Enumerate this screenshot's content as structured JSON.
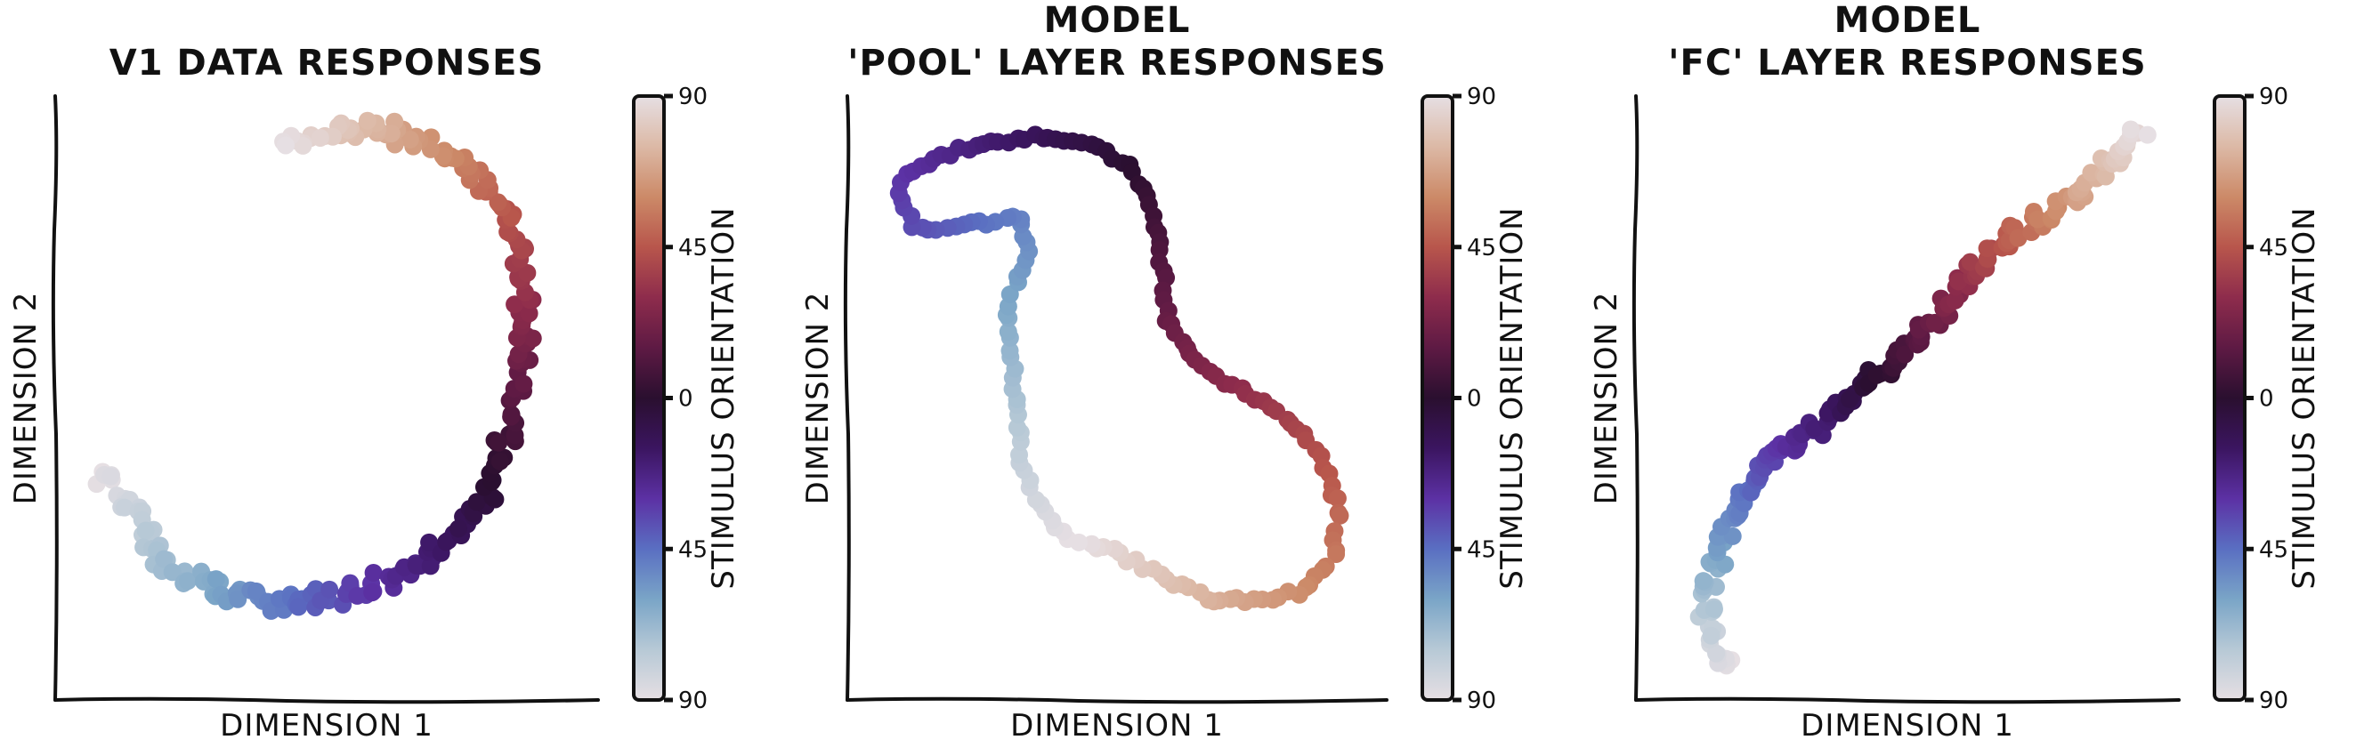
{
  "colormap": [
    "#e6dfe3",
    "#b7c9d6",
    "#7aa5c7",
    "#5a6fc2",
    "#5c31a4",
    "#3b1560",
    "#2a0f2f",
    "#5e1a44",
    "#8e2c4c",
    "#b8564c",
    "#cc8a68",
    "#dcb9a6",
    "#e6dfe3"
  ],
  "chart_data": [
    {
      "type": "scatter",
      "title": [
        "V1 DATA RESPONSES"
      ],
      "xlabel": "DIMENSION 1",
      "ylabel": "DIMENSION 2",
      "xlim": [
        0,
        100
      ],
      "ylim": [
        0,
        100
      ],
      "colorbar": {
        "label": "STIMULUS ORIENTATION",
        "ticks": [
          "90",
          "45",
          "0",
          "45",
          "90"
        ],
        "range": [
          -90,
          90
        ]
      },
      "curve": {
        "samples": 230,
        "jitter": 1.8,
        "ori_range": [
          -90,
          90
        ],
        "points": [
          [
            5,
            37
          ],
          [
            9,
            34
          ],
          [
            13,
            28
          ],
          [
            17,
            22
          ],
          [
            24,
            18
          ],
          [
            33,
            15
          ],
          [
            42,
            14
          ],
          [
            50,
            15
          ],
          [
            59,
            17
          ],
          [
            67,
            20
          ],
          [
            75,
            25
          ],
          [
            82,
            34
          ],
          [
            86,
            45
          ],
          [
            89,
            56
          ],
          [
            89,
            66
          ],
          [
            88,
            75
          ],
          [
            86,
            82
          ],
          [
            80,
            88
          ],
          [
            72,
            94
          ],
          [
            62,
            97
          ],
          [
            53,
            97
          ],
          [
            47,
            96
          ],
          [
            42,
            96
          ]
        ]
      }
    },
    {
      "type": "scatter",
      "title": [
        "MODEL",
        "'POOL' LAYER RESPONSES"
      ],
      "xlabel": "DIMENSION 1",
      "ylabel": "DIMENSION 2",
      "xlim": [
        0,
        100
      ],
      "ylim": [
        0,
        100
      ],
      "colorbar": {
        "label": "STIMULUS ORIENTATION",
        "ticks": [
          "90",
          "45",
          "0",
          "45",
          "90"
        ],
        "range": [
          -90,
          90
        ]
      },
      "curve": {
        "samples": 170,
        "jitter": 0.6,
        "ori_range": [
          -90,
          90
        ],
        "points": [
          [
            40,
            25
          ],
          [
            34,
            32
          ],
          [
            31,
            38
          ],
          [
            30,
            48
          ],
          [
            29,
            58
          ],
          [
            28,
            65
          ],
          [
            30,
            70
          ],
          [
            33,
            75
          ],
          [
            31,
            82
          ],
          [
            24,
            81
          ],
          [
            16,
            80
          ],
          [
            10,
            80
          ],
          [
            7,
            85
          ],
          [
            8,
            90
          ],
          [
            16,
            93
          ],
          [
            25,
            95
          ],
          [
            35,
            96
          ],
          [
            45,
            95
          ],
          [
            53,
            90
          ],
          [
            57,
            82
          ],
          [
            59,
            72
          ],
          [
            60,
            64
          ],
          [
            66,
            56
          ],
          [
            75,
            51
          ],
          [
            85,
            46
          ],
          [
            91,
            38
          ],
          [
            94,
            31
          ],
          [
            93,
            22
          ],
          [
            87,
            16
          ],
          [
            77,
            14
          ],
          [
            67,
            15
          ],
          [
            58,
            19
          ],
          [
            50,
            23
          ],
          [
            43,
            25
          ]
        ]
      }
    },
    {
      "type": "scatter",
      "title": [
        "MODEL",
        "'FC' LAYER RESPONSES"
      ],
      "xlabel": "DIMENSION 1",
      "ylabel": "DIMENSION 2",
      "xlim": [
        0,
        100
      ],
      "ylim": [
        0,
        100
      ],
      "colorbar": {
        "label": "STIMULUS ORIENTATION",
        "ticks": [
          "90",
          "45",
          "0",
          "45",
          "90"
        ],
        "range": [
          -90,
          90
        ]
      },
      "curve": {
        "samples": 190,
        "jitter": 1.6,
        "ori_range": [
          -90,
          90
        ],
        "points": [
          [
            15,
            3
          ],
          [
            12,
            5
          ],
          [
            10,
            10
          ],
          [
            11,
            18
          ],
          [
            14,
            26
          ],
          [
            18,
            33
          ],
          [
            24,
            40
          ],
          [
            31,
            44
          ],
          [
            38,
            49
          ],
          [
            45,
            55
          ],
          [
            52,
            61
          ],
          [
            58,
            66
          ],
          [
            63,
            73
          ],
          [
            70,
            78
          ],
          [
            77,
            82
          ],
          [
            84,
            86
          ],
          [
            90,
            92
          ],
          [
            96,
            97
          ]
        ]
      }
    }
  ]
}
